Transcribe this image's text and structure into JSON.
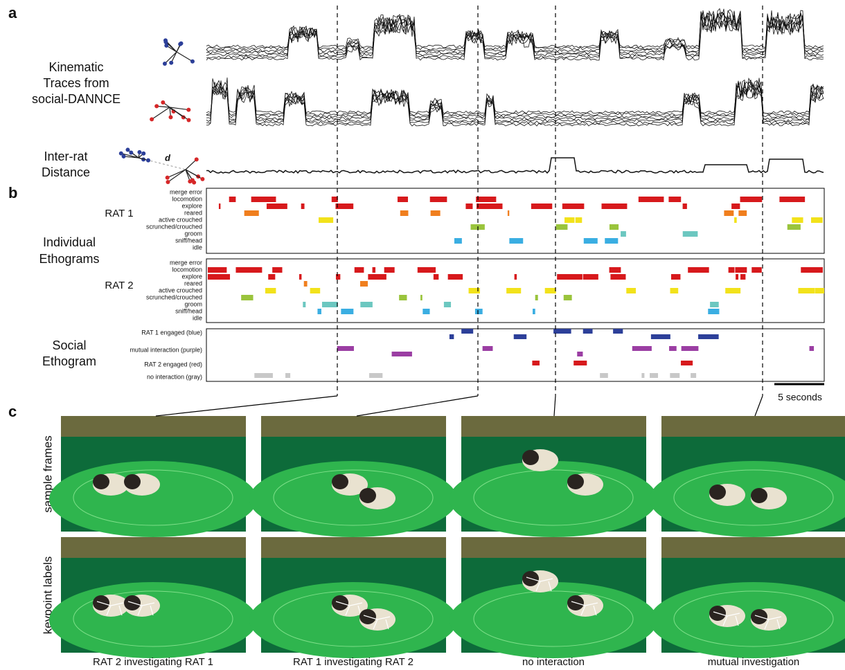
{
  "panels": {
    "a": "a",
    "b": "b",
    "c": "c"
  },
  "kinematic_label": {
    "line1": "Kinematic",
    "line2": "Traces from",
    "line3": "social-DANNCE"
  },
  "distance_label": {
    "line1": "Inter-rat",
    "line2": "Distance",
    "symbol": "d"
  },
  "ethogram_label": {
    "line1": "Individual",
    "line2": "Ethograms"
  },
  "rat1": {
    "name": "RAT 1",
    "behaviors": [
      "merge error",
      "locomotion",
      "explore",
      "reared",
      "active crouched",
      "scrunched/crouched",
      "groom",
      "sniff/head",
      "idle"
    ]
  },
  "rat2": {
    "name": "RAT 2",
    "behaviors": [
      "merge error",
      "locomotion",
      "explore",
      "reared",
      "active crouched",
      "scrunched/crouched",
      "groom",
      "sniff/head",
      "idle"
    ]
  },
  "social": {
    "line1": "Social",
    "line2": "Ethogram",
    "states": [
      "RAT 1 engaged (blue)",
      "mutual interaction (purple)",
      "RAT 2 engaged (red)",
      "no interaction (gray)"
    ]
  },
  "scale_bar": "5 seconds",
  "rows": [
    "sample frames",
    "keypoint labels"
  ],
  "captions": [
    "RAT 2 investigating RAT 1",
    "RAT 1 investigating RAT 2",
    "no interaction",
    "mutual investigation"
  ]
}
